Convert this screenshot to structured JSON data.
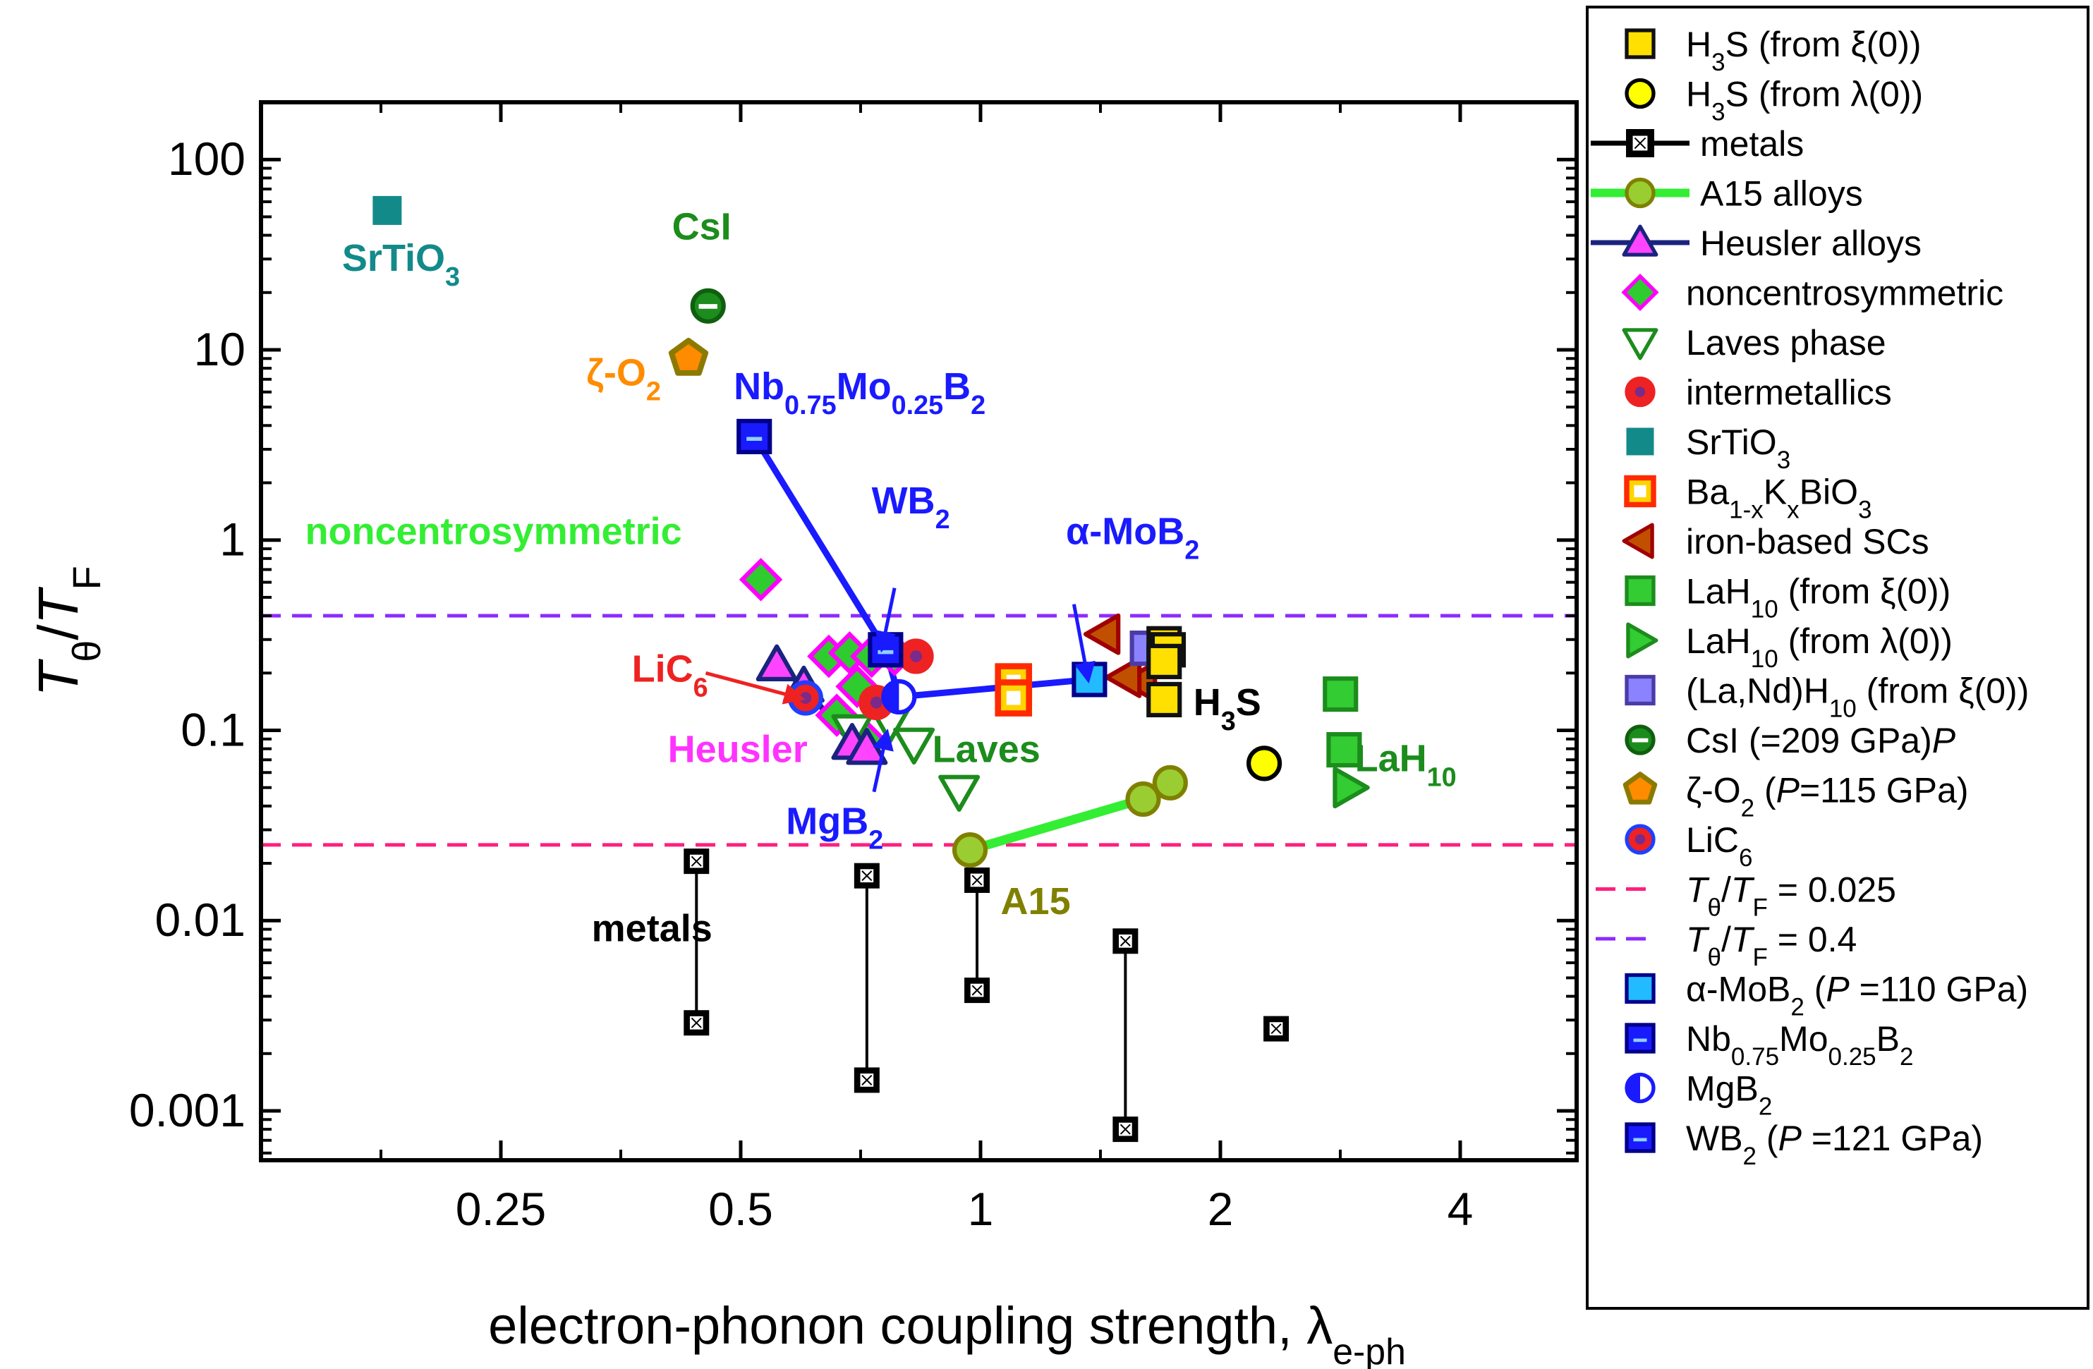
{
  "chart_data": {
    "type": "scatter",
    "xscale": "log",
    "yscale": "log",
    "xlim": [
      0.125,
      5.6
    ],
    "ylim": [
      0.00055,
      200
    ],
    "xlabel": "electron-phonon coupling strength, λ",
    "xlabel_sub": "e-ph",
    "ylabel": {
      "t": "T",
      "sub": "θ",
      "slash": "/",
      "t2": "T",
      "sub2": "F"
    },
    "xticks": [
      {
        "value": 0.25,
        "label": "0.25"
      },
      {
        "value": 0.5,
        "label": "0.5"
      },
      {
        "value": 1,
        "label": "1"
      },
      {
        "value": 2,
        "label": "2"
      },
      {
        "value": 4,
        "label": "4"
      }
    ],
    "yticks": [
      {
        "value": 0.001,
        "label": "0.001"
      },
      {
        "value": 0.01,
        "label": "0.01"
      },
      {
        "value": 0.1,
        "label": "0.1"
      },
      {
        "value": 1,
        "label": "1"
      },
      {
        "value": 10,
        "label": "10"
      },
      {
        "value": 100,
        "label": "100"
      }
    ],
    "hlines": [
      {
        "y": 0.025,
        "color": "#ff1f7f",
        "legend": "T_θ/T_F = 0.025"
      },
      {
        "y": 0.4,
        "color": "#8c2bff",
        "legend": "T_θ/T_F = 0.4"
      }
    ],
    "metals_segments": [
      {
        "x": 0.44,
        "y1": 0.0029,
        "y2": 0.0205
      },
      {
        "x": 0.72,
        "y1": 0.00145,
        "y2": 0.0172
      },
      {
        "x": 0.99,
        "y1": 0.0043,
        "y2": 0.0163
      },
      {
        "x": 1.52,
        "y1": 0.0008,
        "y2": 0.0078
      }
    ],
    "metals_single": [
      {
        "x": 2.35,
        "y": 0.0027
      }
    ],
    "series": [
      {
        "name": "noncentrosymmetric",
        "shape": "diamond",
        "fill": "#2ecc2e",
        "stroke": "#ff00ff",
        "points": [
          [
            0.53,
            0.62
          ],
          [
            0.645,
            0.245
          ],
          [
            0.685,
            0.255
          ],
          [
            0.7,
            0.17
          ],
          [
            0.66,
            0.12
          ],
          [
            0.715,
            0.09
          ],
          [
            0.73,
            0.245
          ],
          [
            0.78,
            0.25
          ]
        ]
      },
      {
        "name": "Laves phase",
        "shape": "tri-down",
        "fill": "#ffffff",
        "stroke": "#1c8c1c",
        "points": [
          [
            0.69,
            0.1
          ],
          [
            0.77,
            0.11
          ],
          [
            0.825,
            0.085
          ],
          [
            0.94,
            0.048
          ]
        ]
      },
      {
        "name": "intermetallics",
        "shape": "circle-dot",
        "fill": "#ee2222",
        "stroke": "#ee2222",
        "points": [
          [
            0.74,
            0.14
          ],
          [
            0.83,
            0.245
          ]
        ]
      },
      {
        "name": "Heusler alloys",
        "shape": "tri-up",
        "fill": "#ff44ff",
        "stroke": "#1a237e",
        "line": "#1a237e",
        "points": [
          [
            0.555,
            0.22
          ],
          [
            0.6,
            0.17
          ],
          [
            0.69,
            0.085
          ],
          [
            0.72,
            0.08
          ]
        ]
      },
      {
        "name": "A15 alloys",
        "shape": "circle",
        "fill": "#9acd32",
        "stroke": "#808000",
        "line": "#33ee33",
        "points": [
          [
            0.97,
            0.0235
          ],
          [
            1.6,
            0.0435
          ],
          [
            1.73,
            0.053
          ]
        ]
      },
      {
        "name": "Ba1-xKxBiO3",
        "shape": "square-open",
        "fill": "#ffd400",
        "stroke": "#ff2a00",
        "points": [
          [
            1.1,
            0.18
          ],
          [
            1.1,
            0.148
          ]
        ]
      },
      {
        "name": "iron-based SCs",
        "shape": "tri-left",
        "fill": "#c05000",
        "stroke": "#a00000",
        "points": [
          [
            1.43,
            0.32
          ],
          [
            1.59,
            0.18
          ],
          [
            1.52,
            0.19
          ]
        ]
      },
      {
        "name": "(La,Nd)H10 (from ξ(0))",
        "shape": "square",
        "fill": "#8a82ff",
        "stroke": "#4b3ba8",
        "points": [
          [
            1.62,
            0.27
          ]
        ]
      },
      {
        "name": "H3S (from ξ(0))",
        "shape": "square",
        "fill": "#ffe000",
        "stroke": "#111111",
        "points": [
          [
            1.7,
            0.285
          ],
          [
            1.72,
            0.265
          ],
          [
            1.7,
            0.23
          ],
          [
            1.7,
            0.145
          ]
        ]
      },
      {
        "name": "H3S (from λ(0))",
        "shape": "circle",
        "fill": "#ffff00",
        "stroke": "#000000",
        "points": [
          [
            2.27,
            0.067
          ]
        ]
      },
      {
        "name": "LaH10 (from ξ(0))",
        "shape": "square",
        "fill": "#33cc33",
        "stroke": "#1c8c1c",
        "points": [
          [
            2.83,
            0.155
          ],
          [
            2.86,
            0.079
          ]
        ]
      },
      {
        "name": "LaH10 (from λ(0))",
        "shape": "tri-right",
        "fill": "#33cc33",
        "stroke": "#1c8c1c",
        "points": [
          [
            2.9,
            0.05
          ]
        ]
      },
      {
        "name": "SrTiO3",
        "shape": "square-solid",
        "fill": "#138a8a",
        "stroke": "#138a8a",
        "points": [
          [
            0.18,
            54
          ]
        ]
      },
      {
        "name": "CsI (P=209 GPa)",
        "shape": "circle-half",
        "fill": "#1c8c1c",
        "stroke": "#0f5f0f",
        "points": [
          [
            0.455,
            17
          ]
        ]
      },
      {
        "name": "ζ-O2 (P=115 GPa)",
        "shape": "pentagon",
        "fill": "#ff8c00",
        "stroke": "#8c7a00",
        "points": [
          [
            0.43,
            9
          ]
        ]
      },
      {
        "name": "LiC6",
        "shape": "circle-dot",
        "fill": "#ee2222",
        "stroke": "#1f3fff",
        "points": [
          [
            0.603,
            0.148
          ]
        ]
      },
      {
        "name": "MgB2",
        "shape": "circle-halfv",
        "fill": "#1a1aff",
        "stroke": "#1a1aff",
        "points": [
          [
            0.79,
            0.15
          ]
        ]
      },
      {
        "name": "Nb0.75Mo0.25B2",
        "shape": "square-dash",
        "fill": "#1a1aff",
        "stroke": "#00008b",
        "points": [
          [
            0.52,
            3.5
          ]
        ]
      },
      {
        "name": "WB2 (P=121 GPa)",
        "shape": "square-dash",
        "fill": "#1a1aff",
        "stroke": "#00008b",
        "points": [
          [
            0.76,
            0.265
          ]
        ]
      },
      {
        "name": "α-MoB2 (P=110 GPa)",
        "shape": "square",
        "fill": "#22bbff",
        "stroke": "#00008b",
        "points": [
          [
            1.37,
            0.185
          ]
        ]
      }
    ],
    "boron_line": {
      "color": "#1a1aff",
      "points": [
        [
          0.52,
          3.5
        ],
        [
          0.76,
          0.265
        ],
        [
          0.79,
          0.15
        ],
        [
          1.37,
          0.185
        ]
      ]
    },
    "annotations": [
      {
        "text": "SrTiO",
        "sub": "3",
        "color": "#138a8a",
        "x": 0.158,
        "y": 26
      },
      {
        "text": "CsI",
        "sub": "",
        "color": "#1c8c1c",
        "x": 0.41,
        "y": 38
      },
      {
        "text": "ζ-O",
        "sub": "2",
        "color": "#ff8c00",
        "x": 0.32,
        "y": 6.5
      },
      {
        "text": "Nb",
        "sub": "0.75",
        "text2": "Mo",
        "sub2": "0.25",
        "text3": "B",
        "sub3": "2",
        "color": "#1a1aff",
        "x": 0.49,
        "y": 5.5
      },
      {
        "text": "noncentrosymmetric",
        "sub": "",
        "color": "#33ee33",
        "x": 0.142,
        "y": 0.95
      },
      {
        "text": "WB",
        "sub": "2",
        "color": "#1a1aff",
        "x": 0.73,
        "y": 1.38
      },
      {
        "text": "α-MoB",
        "sub": "2",
        "color": "#1a1aff",
        "x": 1.28,
        "y": 0.95
      },
      {
        "text": "LiC",
        "sub": "6",
        "color": "#ee2222",
        "x": 0.365,
        "y": 0.18
      },
      {
        "text": "Heusler",
        "sub": "",
        "color": "#ff33ff",
        "x": 0.405,
        "y": 0.068
      },
      {
        "text": "Laves",
        "sub": "",
        "color": "#1c8c1c",
        "x": 0.87,
        "y": 0.068
      },
      {
        "text": "MgB",
        "sub": "2",
        "color": "#1a1aff",
        "x": 0.57,
        "y": 0.0285
      },
      {
        "text": "H",
        "sub": "3",
        "text2": "S",
        "color": "#000000",
        "x": 1.85,
        "y": 0.12
      },
      {
        "text": "LaH",
        "sub": "10",
        "color": "#1c8c1c",
        "x": 2.95,
        "y": 0.061
      },
      {
        "text": "A15",
        "sub": "",
        "color": "#808000",
        "x": 1.06,
        "y": 0.0108
      },
      {
        "text": "metals",
        "sub": "",
        "color": "#000000",
        "x": 0.325,
        "y": 0.0078
      }
    ],
    "arrows": [
      {
        "from": [
          0.452,
          0.2
        ],
        "to": [
          0.585,
          0.15
        ],
        "color": "#ee2222"
      },
      {
        "from": [
          0.78,
          0.56
        ],
        "to": [
          0.755,
          0.29
        ],
        "color": "#1a1aff"
      },
      {
        "from": [
          1.31,
          0.46
        ],
        "to": [
          1.36,
          0.2
        ],
        "color": "#1a1aff"
      },
      {
        "from": [
          0.735,
          0.0475
        ],
        "to": [
          0.76,
          0.09
        ],
        "color": "#1a1aff"
      }
    ],
    "legend": {
      "position": "right",
      "entries": [
        {
          "shape": "square",
          "fill": "#ffe000",
          "stroke": "#111111",
          "label": "H",
          "sub": "3",
          "label2": "S (from ξ(0))"
        },
        {
          "shape": "circle",
          "fill": "#ffff00",
          "stroke": "#000000",
          "label": "H",
          "sub": "3",
          "label2": "S (from λ(0))"
        },
        {
          "shape": "square-x",
          "fill": "#000000",
          "stroke": "#000000",
          "line": "#000000",
          "label": "metals"
        },
        {
          "shape": "circle",
          "fill": "#9acd32",
          "stroke": "#808000",
          "line": "#33ee33",
          "label": "A15 alloys"
        },
        {
          "shape": "tri-up",
          "fill": "#ff44ff",
          "stroke": "#1a237e",
          "line": "#1a237e",
          "label": "Heusler alloys"
        },
        {
          "shape": "diamond",
          "fill": "#2ecc2e",
          "stroke": "#ff00ff",
          "label": "noncentrosymmetric"
        },
        {
          "shape": "tri-down",
          "fill": "#ffffff",
          "stroke": "#1c8c1c",
          "label": "Laves phase"
        },
        {
          "shape": "circle-dot",
          "fill": "#ee2222",
          "stroke": "#ee2222",
          "label": "intermetallics"
        },
        {
          "shape": "square-solid",
          "fill": "#138a8a",
          "stroke": "#138a8a",
          "label": "SrTiO",
          "sub": "3"
        },
        {
          "shape": "square-open",
          "fill": "#ffd400",
          "stroke": "#ff2a00",
          "label": "Ba",
          "sub": "1-x",
          "label2": "K",
          "sub2": "x",
          "label3": "BiO",
          "sub3": "3"
        },
        {
          "shape": "tri-left",
          "fill": "#c05000",
          "stroke": "#a00000",
          "label": "iron-based SCs"
        },
        {
          "shape": "square",
          "fill": "#33cc33",
          "stroke": "#1c8c1c",
          "label": "LaH",
          "sub": "10",
          "label2": " (from ξ(0))"
        },
        {
          "shape": "tri-right",
          "fill": "#33cc33",
          "stroke": "#1c8c1c",
          "label": "LaH",
          "sub": "10",
          "label2": " (from λ(0))"
        },
        {
          "shape": "square",
          "fill": "#8a82ff",
          "stroke": "#4b3ba8",
          "label": "(La,Nd)H",
          "sub": "10",
          "label2": " (from ξ(0))"
        },
        {
          "shape": "circle-half",
          "fill": "#1c8c1c",
          "stroke": "#0f5f0f",
          "label": "CsI (",
          "italic": "P",
          "label2": "=209 GPa)"
        },
        {
          "shape": "pentagon",
          "fill": "#ff8c00",
          "stroke": "#8c7a00",
          "label": "ζ-O",
          "sub": "2",
          "label2": " (",
          "italic": "P",
          "label3": "=115 GPa)"
        },
        {
          "shape": "circle-dot",
          "fill": "#ee2222",
          "stroke": "#1f3fff",
          "label": "LiC",
          "sub": "6"
        },
        {
          "shape": "dash",
          "stroke": "#ff1f7f",
          "ratio": true,
          "label": " = 0.025"
        },
        {
          "shape": "dash",
          "stroke": "#8c2bff",
          "ratio": true,
          "label": " = 0.4"
        },
        {
          "shape": "square",
          "fill": "#22bbff",
          "stroke": "#00008b",
          "label": "α-MoB",
          "sub": "2",
          "label2": " (",
          "italic": "P",
          "label3": " =110 GPa)"
        },
        {
          "shape": "square-dash",
          "fill": "#1a1aff",
          "stroke": "#00008b",
          "label": "Nb",
          "sub": "0.75",
          "label2": "Mo",
          "sub2": "0.25",
          "label3": "B",
          "sub3": "2"
        },
        {
          "shape": "circle-halfv",
          "fill": "#1a1aff",
          "stroke": "#1a1aff",
          "label": "MgB",
          "sub": "2"
        },
        {
          "shape": "square-dash",
          "fill": "#1a1aff",
          "stroke": "#00008b",
          "label": "WB",
          "sub": "2",
          "label2": " (",
          "italic": "P",
          "label3": " =121 GPa)"
        }
      ]
    }
  }
}
